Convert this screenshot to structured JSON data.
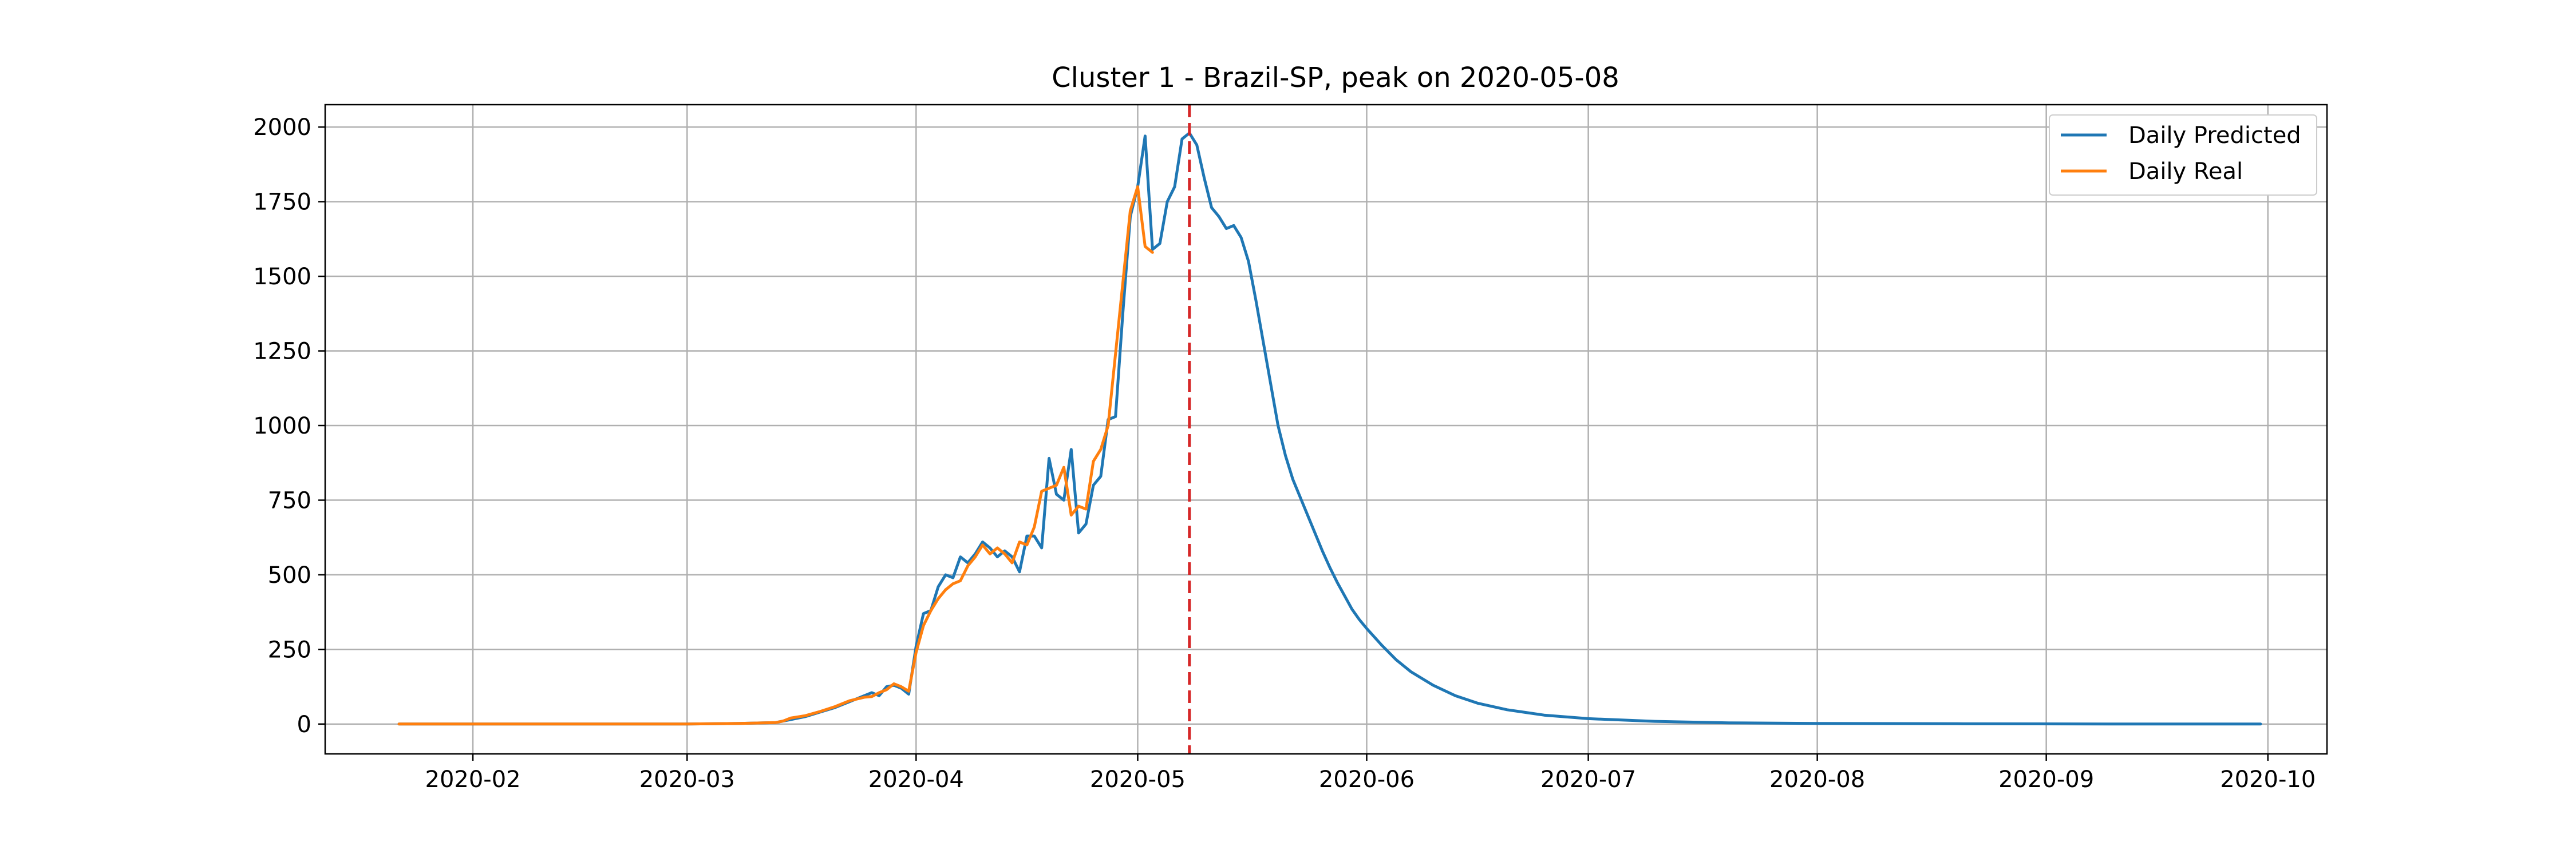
{
  "chart_data": {
    "type": "line",
    "title": "Cluster 1 - Brazil-SP, peak on 2020-05-08",
    "xlabel": "",
    "ylabel": "",
    "xlim": [
      "2020-01-12",
      "2020-10-09"
    ],
    "ylim": [
      -100,
      2075
    ],
    "x_ticks": [
      "2020-02-01",
      "2020-03-01",
      "2020-04-01",
      "2020-05-01",
      "2020-06-01",
      "2020-07-01",
      "2020-08-01",
      "2020-09-01",
      "2020-10-01"
    ],
    "x_tick_labels": [
      "2020-02",
      "2020-03",
      "2020-04",
      "2020-05",
      "2020-06",
      "2020-07",
      "2020-08",
      "2020-09",
      "2020-10"
    ],
    "y_ticks": [
      0,
      250,
      500,
      750,
      1000,
      1250,
      1500,
      1750,
      2000
    ],
    "y_tick_labels": [
      "0",
      "250",
      "500",
      "750",
      "1000",
      "1250",
      "1500",
      "1750",
      "2000"
    ],
    "grid": true,
    "legend_position": "top-right",
    "peak_marker": {
      "x": "2020-05-08",
      "color": "#d62728",
      "style": "dashed"
    },
    "series": [
      {
        "name": "Daily Predicted",
        "color": "#1f77b4",
        "points": [
          [
            "2020-01-22",
            0
          ],
          [
            "2020-03-01",
            0
          ],
          [
            "2020-03-08",
            2
          ],
          [
            "2020-03-13",
            5
          ],
          [
            "2020-03-15",
            15
          ],
          [
            "2020-03-17",
            25
          ],
          [
            "2020-03-19",
            40
          ],
          [
            "2020-03-21",
            55
          ],
          [
            "2020-03-23",
            75
          ],
          [
            "2020-03-25",
            95
          ],
          [
            "2020-03-26",
            105
          ],
          [
            "2020-03-27",
            95
          ],
          [
            "2020-03-28",
            125
          ],
          [
            "2020-03-29",
            130
          ],
          [
            "2020-03-30",
            120
          ],
          [
            "2020-03-31",
            100
          ],
          [
            "2020-04-01",
            260
          ],
          [
            "2020-04-02",
            370
          ],
          [
            "2020-04-03",
            380
          ],
          [
            "2020-04-04",
            460
          ],
          [
            "2020-04-05",
            500
          ],
          [
            "2020-04-06",
            490
          ],
          [
            "2020-04-07",
            560
          ],
          [
            "2020-04-08",
            540
          ],
          [
            "2020-04-09",
            570
          ],
          [
            "2020-04-10",
            610
          ],
          [
            "2020-04-11",
            590
          ],
          [
            "2020-04-12",
            560
          ],
          [
            "2020-04-13",
            580
          ],
          [
            "2020-04-14",
            560
          ],
          [
            "2020-04-15",
            510
          ],
          [
            "2020-04-16",
            630
          ],
          [
            "2020-04-17",
            630
          ],
          [
            "2020-04-18",
            590
          ],
          [
            "2020-04-19",
            890
          ],
          [
            "2020-04-20",
            770
          ],
          [
            "2020-04-21",
            750
          ],
          [
            "2020-04-22",
            920
          ],
          [
            "2020-04-23",
            640
          ],
          [
            "2020-04-24",
            670
          ],
          [
            "2020-04-25",
            800
          ],
          [
            "2020-04-26",
            830
          ],
          [
            "2020-04-27",
            1020
          ],
          [
            "2020-04-28",
            1030
          ],
          [
            "2020-04-29",
            1380
          ],
          [
            "2020-04-30",
            1700
          ],
          [
            "2020-05-01",
            1800
          ],
          [
            "2020-05-02",
            1970
          ],
          [
            "2020-05-03",
            1590
          ],
          [
            "2020-05-04",
            1610
          ],
          [
            "2020-05-05",
            1750
          ],
          [
            "2020-05-06",
            1800
          ],
          [
            "2020-05-07",
            1960
          ],
          [
            "2020-05-08",
            1980
          ],
          [
            "2020-05-09",
            1940
          ],
          [
            "2020-05-10",
            1830
          ],
          [
            "2020-05-11",
            1730
          ],
          [
            "2020-05-12",
            1700
          ],
          [
            "2020-05-13",
            1660
          ],
          [
            "2020-05-14",
            1670
          ],
          [
            "2020-05-15",
            1630
          ],
          [
            "2020-05-16",
            1550
          ],
          [
            "2020-05-17",
            1420
          ],
          [
            "2020-05-18",
            1280
          ],
          [
            "2020-05-19",
            1140
          ],
          [
            "2020-05-20",
            1000
          ],
          [
            "2020-05-21",
            900
          ],
          [
            "2020-05-22",
            820
          ],
          [
            "2020-05-23",
            760
          ],
          [
            "2020-05-24",
            700
          ],
          [
            "2020-05-25",
            640
          ],
          [
            "2020-05-26",
            580
          ],
          [
            "2020-05-27",
            525
          ],
          [
            "2020-05-28",
            475
          ],
          [
            "2020-05-29",
            430
          ],
          [
            "2020-05-30",
            385
          ],
          [
            "2020-05-31",
            350
          ],
          [
            "2020-06-01",
            320
          ],
          [
            "2020-06-03",
            265
          ],
          [
            "2020-06-05",
            215
          ],
          [
            "2020-06-07",
            175
          ],
          [
            "2020-06-10",
            130
          ],
          [
            "2020-06-13",
            95
          ],
          [
            "2020-06-16",
            70
          ],
          [
            "2020-06-20",
            48
          ],
          [
            "2020-06-25",
            30
          ],
          [
            "2020-07-01",
            18
          ],
          [
            "2020-07-10",
            9
          ],
          [
            "2020-07-20",
            4
          ],
          [
            "2020-08-01",
            2
          ],
          [
            "2020-08-20",
            1
          ],
          [
            "2020-09-15",
            0
          ],
          [
            "2020-09-30",
            0
          ]
        ]
      },
      {
        "name": "Daily Real",
        "color": "#ff7f0e",
        "points": [
          [
            "2020-01-22",
            0
          ],
          [
            "2020-03-01",
            0
          ],
          [
            "2020-03-08",
            2
          ],
          [
            "2020-03-13",
            5
          ],
          [
            "2020-03-14",
            10
          ],
          [
            "2020-03-15",
            20
          ],
          [
            "2020-03-17",
            28
          ],
          [
            "2020-03-19",
            42
          ],
          [
            "2020-03-21",
            58
          ],
          [
            "2020-03-23",
            78
          ],
          [
            "2020-03-25",
            90
          ],
          [
            "2020-03-26",
            92
          ],
          [
            "2020-03-27",
            105
          ],
          [
            "2020-03-28",
            115
          ],
          [
            "2020-03-29",
            135
          ],
          [
            "2020-03-30",
            125
          ],
          [
            "2020-03-31",
            110
          ],
          [
            "2020-04-01",
            240
          ],
          [
            "2020-04-02",
            330
          ],
          [
            "2020-04-03",
            380
          ],
          [
            "2020-04-04",
            420
          ],
          [
            "2020-04-05",
            450
          ],
          [
            "2020-04-06",
            470
          ],
          [
            "2020-04-07",
            480
          ],
          [
            "2020-04-08",
            530
          ],
          [
            "2020-04-09",
            560
          ],
          [
            "2020-04-10",
            600
          ],
          [
            "2020-04-11",
            570
          ],
          [
            "2020-04-12",
            590
          ],
          [
            "2020-04-13",
            570
          ],
          [
            "2020-04-14",
            540
          ],
          [
            "2020-04-15",
            610
          ],
          [
            "2020-04-16",
            600
          ],
          [
            "2020-04-17",
            660
          ],
          [
            "2020-04-18",
            780
          ],
          [
            "2020-04-19",
            790
          ],
          [
            "2020-04-20",
            800
          ],
          [
            "2020-04-21",
            860
          ],
          [
            "2020-04-22",
            700
          ],
          [
            "2020-04-23",
            730
          ],
          [
            "2020-04-24",
            720
          ],
          [
            "2020-04-25",
            880
          ],
          [
            "2020-04-26",
            920
          ],
          [
            "2020-04-27",
            1000
          ],
          [
            "2020-04-28",
            1240
          ],
          [
            "2020-04-29",
            1480
          ],
          [
            "2020-04-30",
            1720
          ],
          [
            "2020-05-01",
            1800
          ],
          [
            "2020-05-02",
            1600
          ],
          [
            "2020-05-03",
            1580
          ]
        ]
      }
    ]
  }
}
